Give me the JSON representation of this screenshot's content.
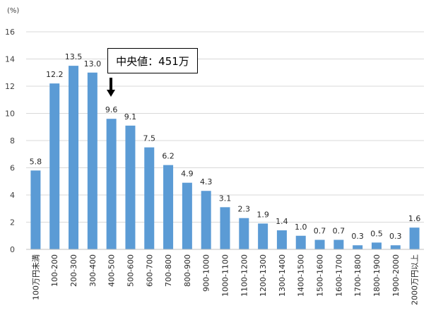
{
  "chart_data": {
    "type": "bar",
    "unit_label": "(%)",
    "categories": [
      "100万円未満",
      "100-200",
      "200-300",
      "300-400",
      "400-500",
      "500-600",
      "600-700",
      "700-800",
      "800-900",
      "900-1000",
      "1000-1100",
      "1100-1200",
      "1200-1300",
      "1300-1400",
      "1400-1500",
      "1500-1600",
      "1600-1700",
      "1700-1800",
      "1800-1900",
      "1900-2000",
      "2000万円以上"
    ],
    "values": [
      5.8,
      12.2,
      13.5,
      13.0,
      9.6,
      9.1,
      7.5,
      6.2,
      4.9,
      4.3,
      3.1,
      2.3,
      1.9,
      1.4,
      1.0,
      0.7,
      0.7,
      0.3,
      0.5,
      0.3,
      1.6
    ],
    "value_labels": [
      "5.8",
      "12.2",
      "13.5",
      "13.0",
      "9.6",
      "9.1",
      "7.5",
      "6.2",
      "4.9",
      "4.3",
      "3.1",
      "2.3",
      "1.9",
      "1.4",
      "1.0",
      "0.7",
      "0.7",
      "0.3",
      "0.5",
      "0.3",
      "1.6"
    ],
    "ylim": [
      0,
      16
    ],
    "yticks": [
      "0",
      "2",
      "4",
      "6",
      "8",
      "10",
      "12",
      "14",
      "16"
    ],
    "grid": true,
    "bar_color": "#5b9bd5",
    "annotation": {
      "text": "中央値：451万",
      "points_to_category": "400-500",
      "arrow_icon": "down-arrow-icon"
    }
  }
}
